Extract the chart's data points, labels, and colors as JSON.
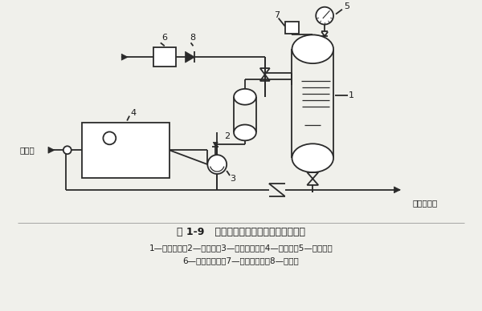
{
  "title": "图 1-9   自动补气式气压罐给水工作原理图",
  "legend_line1": "1—气压水罐；2—补气罐；3—补水稳压泵；4—贮水池；5—压力表；",
  "legend_line2": "6—空气过滤器；7—压力控制器；8—逆止阀",
  "label_jiewai": "接外网",
  "label_jiegei": "接给水系统",
  "bg_color": "#f0f0eb",
  "line_color": "#2a2a2a",
  "font_color": "#1a1a1a"
}
